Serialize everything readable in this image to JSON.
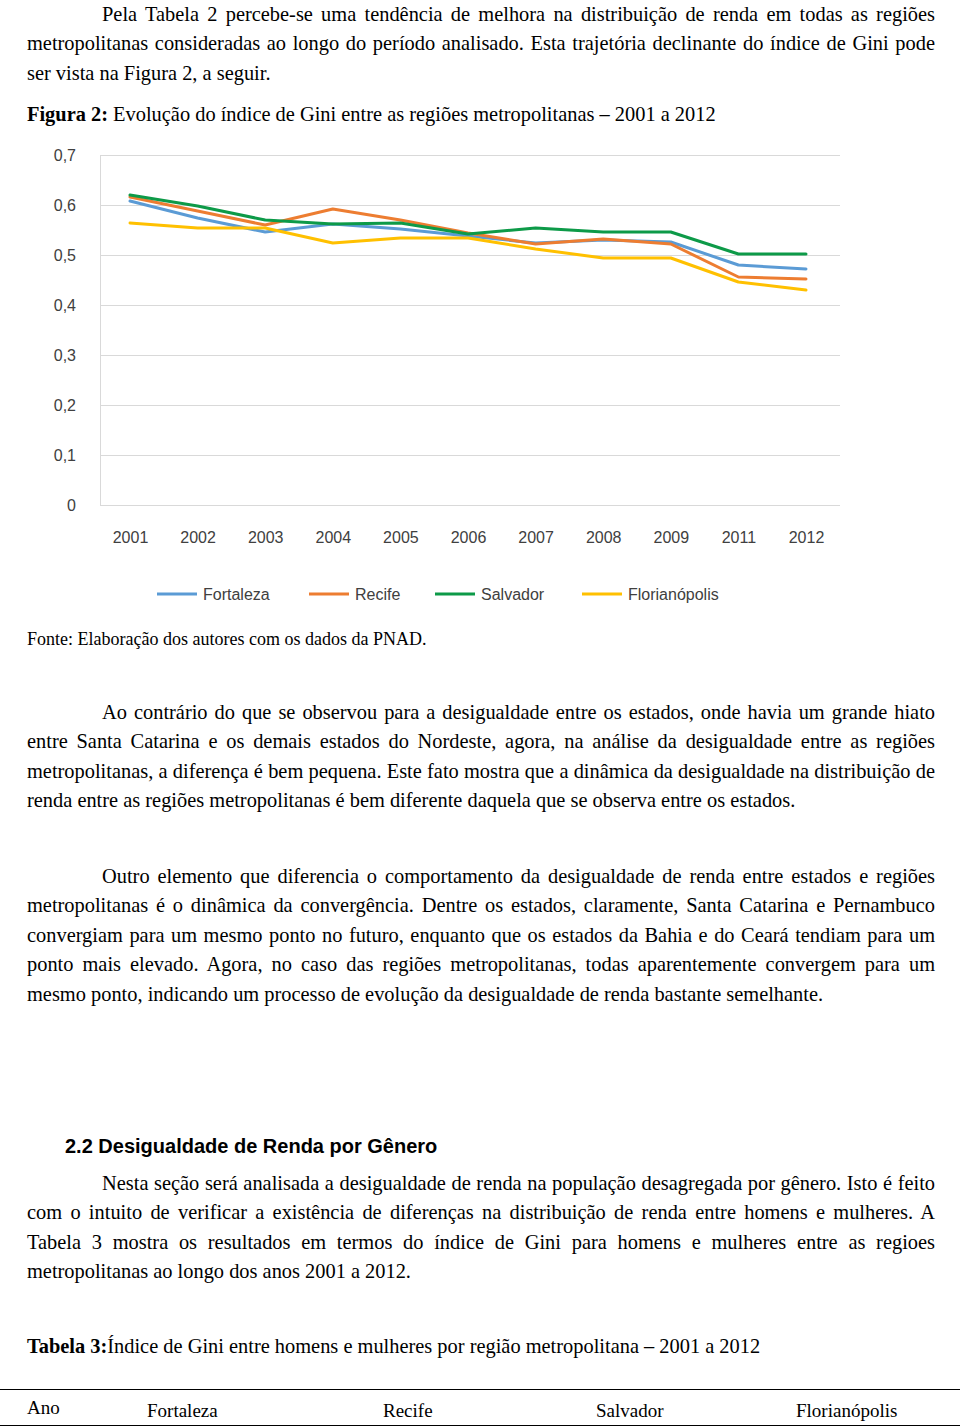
{
  "document": {
    "paragraphs": [
      "Pela Tabela 2 percebe-se uma tendência de melhora na distribuição de renda em todas as regiões metropolitanas consideradas ao longo do período analisado. Esta trajetória declinante do índice de Gini pode ser vista na Figura 2, a seguir.",
      "Ao contrário do que se observou para a desigualdade entre os estados, onde havia um grande hiato entre Santa Catarina e os demais estados do Nordeste, agora, na análise da desigualdade entre as regiões metropolitanas, a diferença é bem pequena. Este fato mostra que a dinâmica da desigualdade na distribuição de renda entre as regiões metropolitanas é bem diferente daquela que se observa entre os estados.",
      "Outro elemento que diferencia o comportamento da desigualdade de renda entre estados e regiões metropolitanas é o dinâmica da convergência. Dentre os estados, claramente, Santa Catarina e Pernambuco convergiam para um mesmo ponto no futuro, enquanto que os estados da Bahia e do Ceará tendiam para um ponto mais elevado. Agora, no caso das regiões metropolitanas, todas aparentemente convergem para um mesmo ponto, indicando um processo de evolução da desigualdade de renda bastante semelhante."
    ],
    "figure_caption": {
      "label": "Figura 2:",
      "text": "Evolução do índice de Gini entre as regiões metropolitanas – 2001 a 2012"
    },
    "figure_source": "Fonte: Elaboração dos autores com os dados da PNAD.",
    "section_heading": "2.2 Desigualdade de Renda por Gênero",
    "section_paragraph": "Nesta seção será analisada a desigualdade de renda na população desagregada por gênero. Isto é feito com o intuito de verificar a existência de diferenças na distribuição de renda entre homens e mulheres. A Tabela 3 mostra os resultados em termos do índice de Gini para homens e mulheres entre as regioes metropolitanas ao longo dos anos 2001 a 2012.",
    "table_caption": {
      "label": "Tabela 3:",
      "text": "Índice de Gini entre homens e mulheres por região metropolitana – 2001 a 2012"
    },
    "table": {
      "header": [
        "Ano",
        "Fortaleza",
        "Recife",
        "Salvador",
        "Florianópolis"
      ]
    }
  },
  "chart_data": {
    "type": "line",
    "categories": [
      "2001",
      "2002",
      "2003",
      "2004",
      "2005",
      "2006",
      "2007",
      "2008",
      "2009",
      "2011",
      "2012"
    ],
    "series": [
      {
        "name": "Fortaleza",
        "color": "#5b9bd5",
        "values": [
          0.608,
          0.574,
          0.546,
          0.562,
          0.552,
          0.538,
          0.524,
          0.53,
          0.526,
          0.48,
          0.472
        ]
      },
      {
        "name": "Recife",
        "color": "#ed7d31",
        "values": [
          0.616,
          0.588,
          0.56,
          0.592,
          0.57,
          0.544,
          0.522,
          0.532,
          0.522,
          0.456,
          0.452
        ]
      },
      {
        "name": "Salvador",
        "color": "#0d9a48",
        "values": [
          0.62,
          0.598,
          0.57,
          0.562,
          0.564,
          0.542,
          0.554,
          0.546,
          0.546,
          0.502,
          0.502
        ]
      },
      {
        "name": "Florianópolis",
        "color": "#ffc000",
        "values": [
          0.564,
          0.554,
          0.554,
          0.524,
          0.534,
          0.534,
          0.512,
          0.494,
          0.494,
          0.446,
          0.43
        ]
      }
    ],
    "ylim": [
      0,
      0.7
    ],
    "yticks": [
      0,
      {
        "value": 0.1,
        "label": "0,1"
      },
      {
        "value": 0.2,
        "label": "0,2"
      },
      {
        "value": 0.3,
        "label": "0,3"
      },
      {
        "value": 0.4,
        "label": "0,4"
      },
      {
        "value": 0.5,
        "label": "0,5"
      },
      {
        "value": 0.6,
        "label": "0,6"
      },
      {
        "value": 0.7,
        "label": "0,7"
      }
    ],
    "grid": true,
    "legend": "bottom"
  }
}
